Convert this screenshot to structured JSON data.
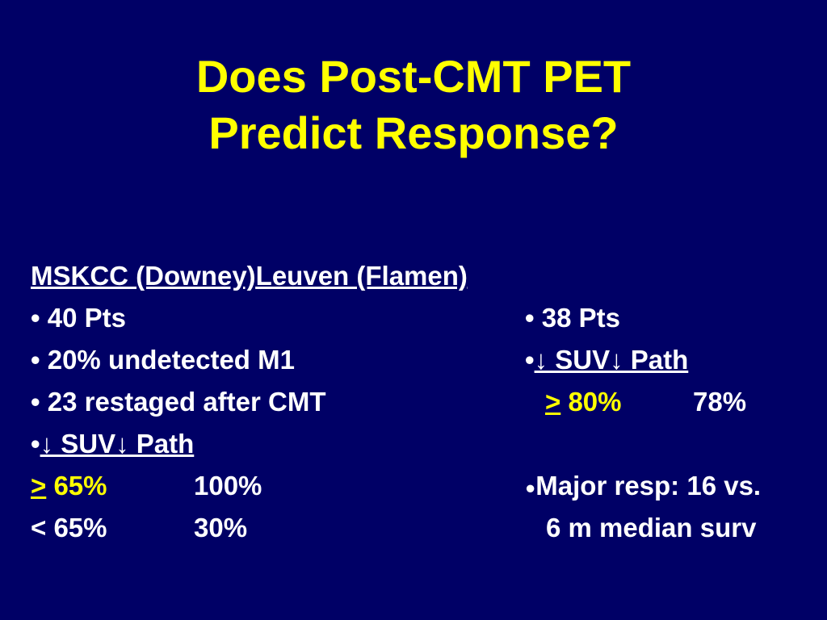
{
  "slide": {
    "title_line1": "Does Post-CMT PET",
    "title_line2": "Predict Response?",
    "left_heading": "MSKCC (Downey)",
    "right_heading": "Leuven (Flamen)",
    "left_items": {
      "pts": "• 40 Pts",
      "undetected": "• 20% undetected M1",
      "restaged": "• 23 restaged after CMT",
      "suv_bullet": "•",
      "suv_text": "↓ SUV↓ Path",
      "row1_symbol": ">",
      "row1_value": " 65%",
      "row1_path": "100%",
      "row2_value": "< 65%",
      "row2_path": "30%"
    },
    "right_items": {
      "pts": "• 38 Pts",
      "suv_bullet": "•",
      "suv_text": "↓ SUV↓ Path",
      "row1_symbol": ">",
      "row1_value": " 80%",
      "row1_path": "78%",
      "resp_bullet": "●",
      "resp_text": "Major resp: 16 vs.",
      "resp_text2": "6 m median surv"
    }
  }
}
